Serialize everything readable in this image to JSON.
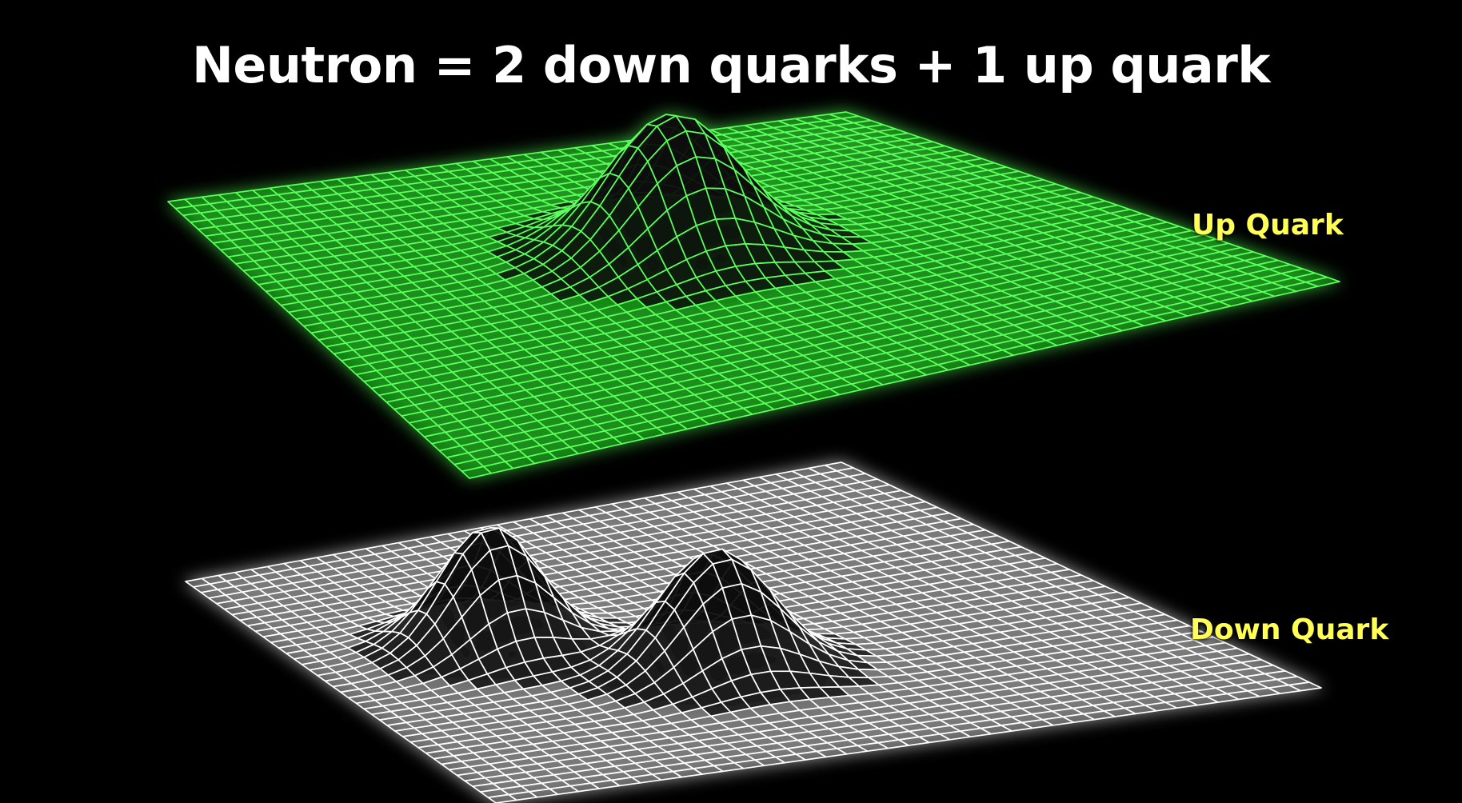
{
  "title": "Neutron = 2 down quarks + 1 up quark",
  "fields": {
    "up": {
      "label": "Up Quark",
      "grid_color": "#5cff5c",
      "surface_color": "#0c8a0c",
      "bump_count": 1
    },
    "down": {
      "label": "Down Quark",
      "grid_color": "#ffffff",
      "surface_color": "#6a6a6a",
      "bump_count": 2
    }
  },
  "label_color": "#ffff55",
  "background_color": "#000000"
}
